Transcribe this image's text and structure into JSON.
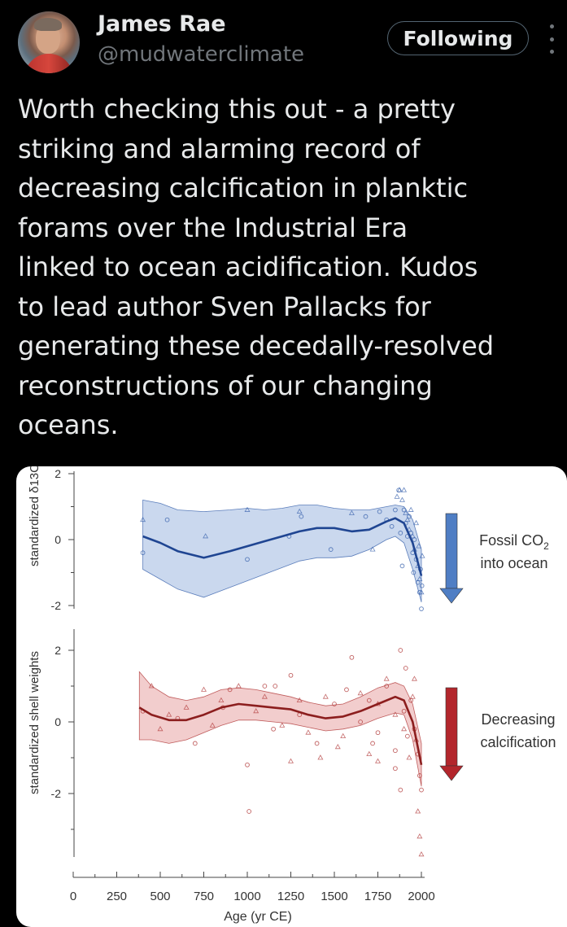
{
  "author": {
    "name": "James Rae",
    "handle": "@mudwaterclimate",
    "avatar_icon": "profile-photo"
  },
  "follow_button": {
    "label": "Following"
  },
  "more_icon": "more-vertical-icon",
  "tweet": {
    "text": "Worth checking this out - a pretty\nstriking and alarming record of\ndecreasing calcification in planktic\nforams over the Industrial Era\nlinked to ocean acidification. Kudos\nto lead author Sven Pallacks for\ngenerating these decedally-resolved\nreconstructions of our changing\noceans."
  },
  "chart_data": [
    {
      "type": "scatter",
      "ylabel": "standardized δ13C",
      "xlim": [
        0,
        2000
      ],
      "ylim": [
        -2,
        2
      ],
      "yticks": [
        2,
        0,
        -2
      ],
      "color": "#3a63ad",
      "band_color": "#b8cbe8",
      "trend": {
        "x": [
          400,
          500,
          600,
          750,
          900,
          1000,
          1100,
          1200,
          1300,
          1400,
          1500,
          1600,
          1700,
          1800,
          1850,
          1900,
          1950,
          2000
        ],
        "y": [
          0.1,
          -0.1,
          -0.35,
          -0.55,
          -0.35,
          -0.2,
          -0.05,
          0.1,
          0.25,
          0.35,
          0.35,
          0.25,
          0.3,
          0.55,
          0.65,
          0.5,
          -0.1,
          -1.1
        ]
      },
      "band_upper": {
        "x": [
          400,
          500,
          600,
          750,
          900,
          1000,
          1100,
          1200,
          1300,
          1400,
          1500,
          1600,
          1700,
          1800,
          1850,
          1900,
          1950,
          2000
        ],
        "y": [
          1.2,
          1.1,
          0.9,
          0.85,
          0.9,
          0.95,
          0.9,
          0.95,
          1.05,
          1.05,
          0.95,
          0.9,
          0.9,
          1.0,
          1.05,
          1.0,
          0.6,
          -0.3
        ]
      },
      "band_lower": {
        "x": [
          400,
          500,
          600,
          750,
          900,
          1000,
          1100,
          1200,
          1300,
          1400,
          1500,
          1600,
          1700,
          1800,
          1850,
          1900,
          1950,
          2000
        ],
        "y": [
          -0.9,
          -1.2,
          -1.5,
          -1.75,
          -1.45,
          -1.25,
          -1.05,
          -0.85,
          -0.65,
          -0.55,
          -0.55,
          -0.5,
          -0.3,
          0.0,
          0.1,
          -0.1,
          -0.9,
          -1.9
        ]
      },
      "points_circle": [
        [
          400,
          -0.4
        ],
        [
          540,
          0.6
        ],
        [
          1000,
          -0.6
        ],
        [
          1240,
          0.1
        ],
        [
          1310,
          0.7
        ],
        [
          1480,
          -0.3
        ],
        [
          1680,
          0.7
        ],
        [
          1760,
          0.85
        ],
        [
          1800,
          0.6
        ],
        [
          1830,
          0.4
        ],
        [
          1850,
          0.9
        ],
        [
          1870,
          1.5
        ],
        [
          1880,
          0.2
        ],
        [
          1890,
          -0.8
        ],
        [
          1900,
          0.9
        ],
        [
          1910,
          0.5
        ],
        [
          1920,
          0.1
        ],
        [
          1930,
          0.7
        ],
        [
          1940,
          0.2
        ],
        [
          1950,
          -0.4
        ],
        [
          1955,
          -1.0
        ],
        [
          1960,
          0.0
        ],
        [
          1970,
          -0.6
        ],
        [
          1980,
          -1.3
        ],
        [
          1990,
          -1.6
        ],
        [
          2000,
          -2.1
        ],
        [
          1995,
          -0.9
        ],
        [
          2003,
          -1.4
        ]
      ],
      "points_triangle": [
        [
          400,
          0.6
        ],
        [
          760,
          0.1
        ],
        [
          1000,
          0.9
        ],
        [
          1300,
          0.85
        ],
        [
          1600,
          0.8
        ],
        [
          1720,
          -0.3
        ],
        [
          1860,
          1.3
        ],
        [
          1875,
          1.5
        ],
        [
          1890,
          1.2
        ],
        [
          1900,
          1.5
        ],
        [
          1910,
          0.8
        ],
        [
          1920,
          0.6
        ],
        [
          1930,
          0.3
        ],
        [
          1940,
          0.9
        ],
        [
          1950,
          0.1
        ],
        [
          1960,
          -0.3
        ],
        [
          1970,
          0.5
        ],
        [
          1980,
          -0.8
        ],
        [
          1990,
          -1.2
        ],
        [
          2000,
          -1.6
        ],
        [
          1985,
          -0.2
        ],
        [
          2005,
          -0.5
        ]
      ],
      "annotation": {
        "text_line1": "Fossil CO",
        "subscript": "2",
        "text_line2": "into ocean",
        "arrow_color": "#4f7ec4"
      }
    },
    {
      "type": "scatter",
      "ylabel": "standardized shell weights",
      "xlim": [
        0,
        2000
      ],
      "ylim": [
        -4,
        2.5
      ],
      "yticks": [
        2,
        0,
        -2
      ],
      "xticks": [
        0,
        250,
        500,
        750,
        1000,
        1250,
        1500,
        1750,
        2000
      ],
      "xlabel": "Age (yr CE)",
      "color": "#b23a3a",
      "band_color": "#eebcbc",
      "trend": {
        "x": [
          380,
          450,
          550,
          650,
          750,
          850,
          950,
          1050,
          1150,
          1250,
          1350,
          1450,
          1550,
          1650,
          1750,
          1850,
          1900,
          1950,
          2000
        ],
        "y": [
          0.4,
          0.2,
          0.05,
          0.05,
          0.2,
          0.4,
          0.5,
          0.45,
          0.4,
          0.35,
          0.2,
          0.1,
          0.15,
          0.3,
          0.5,
          0.7,
          0.6,
          0.0,
          -1.2
        ]
      },
      "band_upper": {
        "x": [
          380,
          450,
          550,
          650,
          750,
          850,
          950,
          1050,
          1150,
          1250,
          1350,
          1450,
          1550,
          1650,
          1750,
          1850,
          1900,
          1950,
          2000
        ],
        "y": [
          1.4,
          1.0,
          0.7,
          0.6,
          0.7,
          0.9,
          0.95,
          0.9,
          0.8,
          0.7,
          0.55,
          0.45,
          0.5,
          0.7,
          0.95,
          1.1,
          1.0,
          0.5,
          -0.6
        ]
      },
      "band_lower": {
        "x": [
          380,
          450,
          550,
          650,
          750,
          850,
          950,
          1050,
          1150,
          1250,
          1350,
          1450,
          1550,
          1650,
          1750,
          1850,
          1900,
          1950,
          2000
        ],
        "y": [
          -0.5,
          -0.5,
          -0.6,
          -0.5,
          -0.3,
          -0.1,
          0.05,
          0.05,
          0.0,
          -0.05,
          -0.15,
          -0.25,
          -0.2,
          -0.1,
          0.1,
          0.25,
          0.2,
          -0.5,
          -1.8
        ]
      },
      "points_circle": [
        [
          400,
          0.3
        ],
        [
          600,
          0.1
        ],
        [
          700,
          -0.6
        ],
        [
          900,
          0.9
        ],
        [
          1000,
          -1.2
        ],
        [
          1100,
          1.0
        ],
        [
          1150,
          -0.2
        ],
        [
          1250,
          1.3
        ],
        [
          1300,
          0.2
        ],
        [
          1400,
          -0.6
        ],
        [
          1500,
          0.5
        ],
        [
          1600,
          1.8
        ],
        [
          1650,
          0.0
        ],
        [
          1700,
          0.6
        ],
        [
          1750,
          -0.3
        ],
        [
          1800,
          1.0
        ],
        [
          1850,
          -0.8
        ],
        [
          1880,
          2.0
        ],
        [
          1900,
          0.3
        ],
        [
          1920,
          -0.4
        ],
        [
          1940,
          0.6
        ],
        [
          1960,
          -0.2
        ],
        [
          1980,
          -0.9
        ],
        [
          1990,
          -1.5
        ],
        [
          2000,
          -1.9
        ],
        [
          1010,
          -2.5
        ],
        [
          1850,
          -1.3
        ],
        [
          1880,
          -1.9
        ],
        [
          1910,
          1.5
        ],
        [
          1720,
          -0.6
        ],
        [
          1570,
          0.9
        ],
        [
          1160,
          1.0
        ],
        [
          860,
          0.4
        ]
      ],
      "points_triangle": [
        [
          450,
          1.0
        ],
        [
          500,
          -0.2
        ],
        [
          550,
          0.2
        ],
        [
          650,
          0.4
        ],
        [
          750,
          0.9
        ],
        [
          800,
          -0.1
        ],
        [
          850,
          0.6
        ],
        [
          950,
          1.0
        ],
        [
          1050,
          0.3
        ],
        [
          1100,
          0.7
        ],
        [
          1200,
          -0.1
        ],
        [
          1300,
          0.6
        ],
        [
          1350,
          -0.3
        ],
        [
          1450,
          0.7
        ],
        [
          1550,
          -0.4
        ],
        [
          1650,
          0.8
        ],
        [
          1700,
          -0.9
        ],
        [
          1750,
          0.5
        ],
        [
          1800,
          1.2
        ],
        [
          1850,
          0.2
        ],
        [
          1900,
          -0.2
        ],
        [
          1950,
          0.7
        ],
        [
          1970,
          -0.5
        ],
        [
          1980,
          -2.5
        ],
        [
          1990,
          -3.2
        ],
        [
          2000,
          -3.7
        ],
        [
          1960,
          1.2
        ],
        [
          1930,
          -1.0
        ],
        [
          1750,
          -1.1
        ],
        [
          1520,
          -0.7
        ],
        [
          1420,
          -1.0
        ],
        [
          1250,
          -1.1
        ]
      ],
      "annotation": {
        "text_line1": "Decreasing",
        "text_line2": "calcification",
        "arrow_color": "#b3262c"
      }
    }
  ]
}
